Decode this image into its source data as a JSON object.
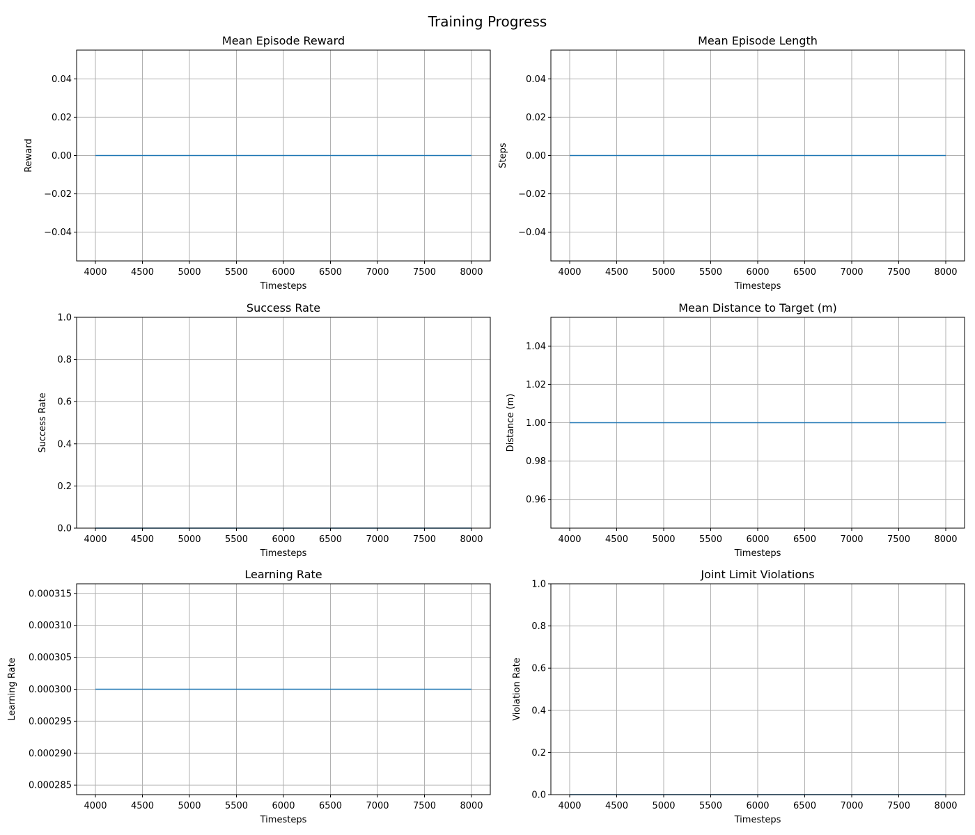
{
  "figure": {
    "suptitle": "Training Progress"
  },
  "colors": {
    "line": "#1f77b4",
    "grid": "#b0b0b0",
    "axes": "#000000"
  },
  "chart_data": [
    {
      "type": "line",
      "title": "Mean Episode Reward",
      "xlabel": "Timesteps",
      "ylabel": "Reward",
      "grid": true,
      "xlim": [
        3800,
        8200
      ],
      "ylim": [
        -0.055,
        0.055
      ],
      "xticks": [
        4000,
        4500,
        5000,
        5500,
        6000,
        6500,
        7000,
        7500,
        8000
      ],
      "yticks": [
        -0.04,
        -0.02,
        0.0,
        0.02,
        0.04
      ],
      "ytick_labels": [
        "−0.04",
        "−0.02",
        "0.00",
        "0.02",
        "0.04"
      ],
      "series": [
        {
          "x": [
            4000,
            8000
          ],
          "y": [
            0.0,
            0.0
          ]
        }
      ]
    },
    {
      "type": "line",
      "title": "Mean Episode Length",
      "xlabel": "Timesteps",
      "ylabel": "Steps",
      "grid": true,
      "xlim": [
        3800,
        8200
      ],
      "ylim": [
        -0.055,
        0.055
      ],
      "xticks": [
        4000,
        4500,
        5000,
        5500,
        6000,
        6500,
        7000,
        7500,
        8000
      ],
      "yticks": [
        -0.04,
        -0.02,
        0.0,
        0.02,
        0.04
      ],
      "ytick_labels": [
        "−0.04",
        "−0.02",
        "0.00",
        "0.02",
        "0.04"
      ],
      "series": [
        {
          "x": [
            4000,
            8000
          ],
          "y": [
            0.0,
            0.0
          ]
        }
      ]
    },
    {
      "type": "line",
      "title": "Success Rate",
      "xlabel": "Timesteps",
      "ylabel": "Success Rate",
      "grid": true,
      "xlim": [
        3800,
        8200
      ],
      "ylim": [
        0,
        1
      ],
      "xticks": [
        4000,
        4500,
        5000,
        5500,
        6000,
        6500,
        7000,
        7500,
        8000
      ],
      "yticks": [
        0.0,
        0.2,
        0.4,
        0.6,
        0.8,
        1.0
      ],
      "ytick_labels": [
        "0.0",
        "0.2",
        "0.4",
        "0.6",
        "0.8",
        "1.0"
      ],
      "series": [
        {
          "x": [
            4000,
            8000
          ],
          "y": [
            0.0,
            0.0
          ]
        }
      ]
    },
    {
      "type": "line",
      "title": "Mean Distance to Target (m)",
      "xlabel": "Timesteps",
      "ylabel": "Distance (m)",
      "grid": true,
      "xlim": [
        3800,
        8200
      ],
      "ylim": [
        0.945,
        1.055
      ],
      "xticks": [
        4000,
        4500,
        5000,
        5500,
        6000,
        6500,
        7000,
        7500,
        8000
      ],
      "yticks": [
        0.96,
        0.98,
        1.0,
        1.02,
        1.04
      ],
      "ytick_labels": [
        "0.96",
        "0.98",
        "1.00",
        "1.02",
        "1.04"
      ],
      "series": [
        {
          "x": [
            4000,
            8000
          ],
          "y": [
            1.0,
            1.0
          ]
        }
      ]
    },
    {
      "type": "line",
      "title": "Learning Rate",
      "xlabel": "Timesteps",
      "ylabel": "Learning Rate",
      "grid": true,
      "xlim": [
        3800,
        8200
      ],
      "ylim": [
        0.0002835,
        0.0003165
      ],
      "xticks": [
        4000,
        4500,
        5000,
        5500,
        6000,
        6500,
        7000,
        7500,
        8000
      ],
      "yticks": [
        0.000285,
        0.00029,
        0.000295,
        0.0003,
        0.000305,
        0.00031,
        0.000315
      ],
      "ytick_labels": [
        "0.000285",
        "0.000290",
        "0.000295",
        "0.000300",
        "0.000305",
        "0.000310",
        "0.000315"
      ],
      "series": [
        {
          "x": [
            4000,
            8000
          ],
          "y": [
            0.0003,
            0.0003
          ]
        }
      ]
    },
    {
      "type": "line",
      "title": "Joint Limit Violations",
      "xlabel": "Timesteps",
      "ylabel": "Violation Rate",
      "grid": true,
      "xlim": [
        3800,
        8200
      ],
      "ylim": [
        0,
        1
      ],
      "xticks": [
        4000,
        4500,
        5000,
        5500,
        6000,
        6500,
        7000,
        7500,
        8000
      ],
      "yticks": [
        0.0,
        0.2,
        0.4,
        0.6,
        0.8,
        1.0
      ],
      "ytick_labels": [
        "0.0",
        "0.2",
        "0.4",
        "0.6",
        "0.8",
        "1.0"
      ],
      "series": [
        {
          "x": [
            4000,
            8000
          ],
          "y": [
            0.0,
            0.0
          ]
        }
      ]
    }
  ]
}
